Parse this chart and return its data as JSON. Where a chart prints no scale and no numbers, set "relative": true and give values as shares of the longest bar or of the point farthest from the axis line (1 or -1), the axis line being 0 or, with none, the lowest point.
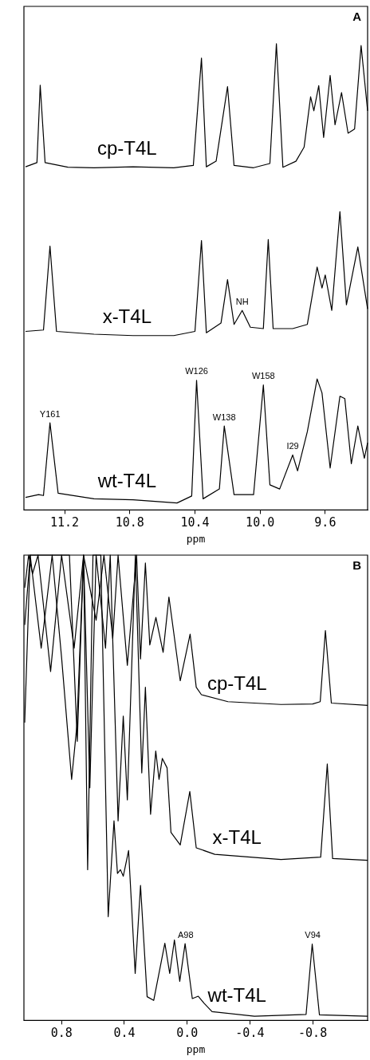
{
  "chart_data": [
    {
      "type": "line",
      "relative": true,
      "xlabel": "ppm",
      "xlim": [
        11.45,
        9.34
      ],
      "xticks": [
        11.2,
        10.8,
        10.4,
        {
          "value": 10,
          "label": "10.0"
        },
        9.6
      ],
      "grid": false,
      "legend": false,
      "marker": "none",
      "line_style": "solid",
      "annotations": [
        "A",
        {
          "text": "Y161",
          "x": 11.29,
          "y": 0.187
        },
        {
          "text": "W126",
          "x": 10.39,
          "y": 0.278
        },
        {
          "text": "W138",
          "x": 10.22,
          "y": 0.18
        },
        {
          "text": "W158",
          "x": 9.98,
          "y": 0.268
        },
        {
          "text": "I29",
          "x": 9.8,
          "y": 0.118
        },
        {
          "text": "NH",
          "x": 10.11,
          "y": 0.428
        }
      ],
      "series": [
        {
          "name": "cp-T4L",
          "color": "#000000",
          "x": [
            11.44,
            11.37,
            11.35,
            11.32,
            11.18,
            11.02,
            10.78,
            10.53,
            10.41,
            10.36,
            10.33,
            10.27,
            10.2,
            10.16,
            10.04,
            9.94,
            9.9,
            9.86,
            9.78,
            9.73,
            9.69,
            9.67,
            9.64,
            9.61,
            9.57,
            9.54,
            9.5,
            9.46,
            9.42,
            9.38,
            9.34
          ],
          "values": [
            0.736,
            0.745,
            0.911,
            0.745,
            0.735,
            0.734,
            0.736,
            0.734,
            0.739,
            0.969,
            0.736,
            0.748,
            0.908,
            0.739,
            0.734,
            0.743,
            1.0,
            0.735,
            0.748,
            0.778,
            0.886,
            0.856,
            0.91,
            0.799,
            0.932,
            0.826,
            0.895,
            0.808,
            0.817,
            0.996,
            0.856
          ]
        },
        {
          "name": "x-T4L",
          "color": "#000000",
          "x": [
            11.44,
            11.33,
            11.29,
            11.25,
            11.02,
            10.78,
            10.53,
            10.4,
            10.36,
            10.33,
            10.24,
            10.2,
            10.16,
            10.11,
            10.06,
            9.98,
            9.95,
            9.92,
            9.8,
            9.71,
            9.65,
            9.62,
            9.6,
            9.56,
            9.51,
            9.47,
            9.4,
            9.34
          ],
          "values": [
            0.383,
            0.386,
            0.566,
            0.383,
            0.377,
            0.374,
            0.374,
            0.383,
            0.578,
            0.38,
            0.401,
            0.494,
            0.398,
            0.428,
            0.392,
            0.389,
            0.58,
            0.389,
            0.389,
            0.398,
            0.521,
            0.476,
            0.504,
            0.428,
            0.64,
            0.44,
            0.564,
            0.431
          ]
        },
        {
          "name": "wt-T4L",
          "color": "#000000",
          "x": [
            11.44,
            11.36,
            11.33,
            11.29,
            11.24,
            11.02,
            10.78,
            10.51,
            10.42,
            10.39,
            10.35,
            10.25,
            10.22,
            10.16,
            10.04,
            9.98,
            9.94,
            9.88,
            9.8,
            9.77,
            9.71,
            9.65,
            9.62,
            9.57,
            9.51,
            9.48,
            9.44,
            9.4,
            9.36,
            9.34
          ],
          "values": [
            0.027,
            0.033,
            0.031,
            0.187,
            0.036,
            0.024,
            0.022,
            0.015,
            0.03,
            0.278,
            0.024,
            0.045,
            0.18,
            0.033,
            0.033,
            0.268,
            0.054,
            0.045,
            0.118,
            0.084,
            0.168,
            0.281,
            0.251,
            0.09,
            0.244,
            0.239,
            0.099,
            0.18,
            0.111,
            0.144
          ]
        }
      ]
    },
    {
      "type": "line",
      "relative": true,
      "xlabel": "ppm",
      "xlim": [
        1.04,
        -1.15
      ],
      "xticks": [
        0.8,
        0.4,
        {
          "value": 0,
          "label": "0.0"
        },
        -0.4,
        -0.8
      ],
      "grid": false,
      "legend": false,
      "marker": "none",
      "line_style": "solid",
      "annotations": [
        "B",
        {
          "text": "A98",
          "x": 0.01,
          "y": 0.165
        },
        {
          "text": "V94",
          "x": -0.8,
          "y": 0.164
        }
      ],
      "series": [
        {
          "name": "cp-T4L",
          "color": "#000000",
          "x": [
            1.035,
            1.01,
            0.985,
            0.95,
            0.87,
            0.8,
            0.72,
            0.66,
            0.58,
            0.53,
            0.474,
            0.44,
            0.381,
            0.322,
            0.297,
            0.266,
            0.238,
            0.199,
            0.153,
            0.116,
            0.044,
            -0.019,
            -0.058,
            -0.091,
            -0.26,
            -0.598,
            -0.8,
            -0.848,
            -0.881,
            -0.919,
            -1.15
          ],
          "values": [
            0.93,
            1.0,
            0.96,
            1.0,
            0.75,
            1.0,
            0.8,
            1.0,
            0.86,
            1.0,
            0.821,
            1.0,
            0.763,
            1.0,
            0.777,
            0.983,
            0.807,
            0.866,
            0.791,
            0.91,
            0.73,
            0.83,
            0.716,
            0.7,
            0.685,
            0.679,
            0.68,
            0.685,
            0.838,
            0.682,
            0.677
          ]
        },
        {
          "name": "x-T4L",
          "color": "#000000",
          "x": [
            1.035,
            1.0,
            0.93,
            0.86,
            0.8,
            0.736,
            0.702,
            0.66,
            0.62,
            0.58,
            0.52,
            0.49,
            0.44,
            0.407,
            0.381,
            0.33,
            0.289,
            0.266,
            0.233,
            0.2,
            0.179,
            0.158,
            0.128,
            0.103,
            0.044,
            -0.017,
            -0.058,
            -0.176,
            -0.598,
            -0.851,
            -0.893,
            -0.927,
            -1.15
          ],
          "values": [
            0.64,
            1.0,
            0.8,
            1.0,
            0.78,
            0.518,
            0.636,
            1.0,
            0.5,
            1.0,
            0.8,
            1.0,
            0.429,
            0.654,
            0.474,
            1.0,
            0.532,
            0.716,
            0.443,
            0.579,
            0.518,
            0.563,
            0.543,
            0.404,
            0.377,
            0.492,
            0.371,
            0.357,
            0.346,
            0.351,
            0.551,
            0.348,
            0.344
          ]
        },
        {
          "name": "wt-T4L",
          "color": "#000000",
          "x": [
            1.035,
            1.0,
            0.75,
            0.7,
            0.66,
            0.634,
            0.6,
            0.55,
            0.503,
            0.466,
            0.444,
            0.425,
            0.407,
            0.373,
            0.331,
            0.297,
            0.255,
            0.213,
            0.142,
            0.111,
            0.081,
            0.047,
            0.013,
            -0.033,
            -0.071,
            -0.108,
            -0.159,
            -0.429,
            -0.758,
            -0.797,
            -0.843,
            -1.15
          ],
          "values": [
            0.85,
            1.0,
            1.0,
            0.6,
            1.0,
            0.324,
            1.0,
            1.0,
            0.223,
            0.429,
            0.316,
            0.324,
            0.31,
            0.365,
            0.101,
            0.29,
            0.051,
            0.043,
            0.166,
            0.101,
            0.173,
            0.084,
            0.165,
            0.047,
            0.052,
            0.037,
            0.019,
            0.009,
            0.013,
            0.164,
            0.012,
            0.009
          ]
        }
      ]
    }
  ]
}
